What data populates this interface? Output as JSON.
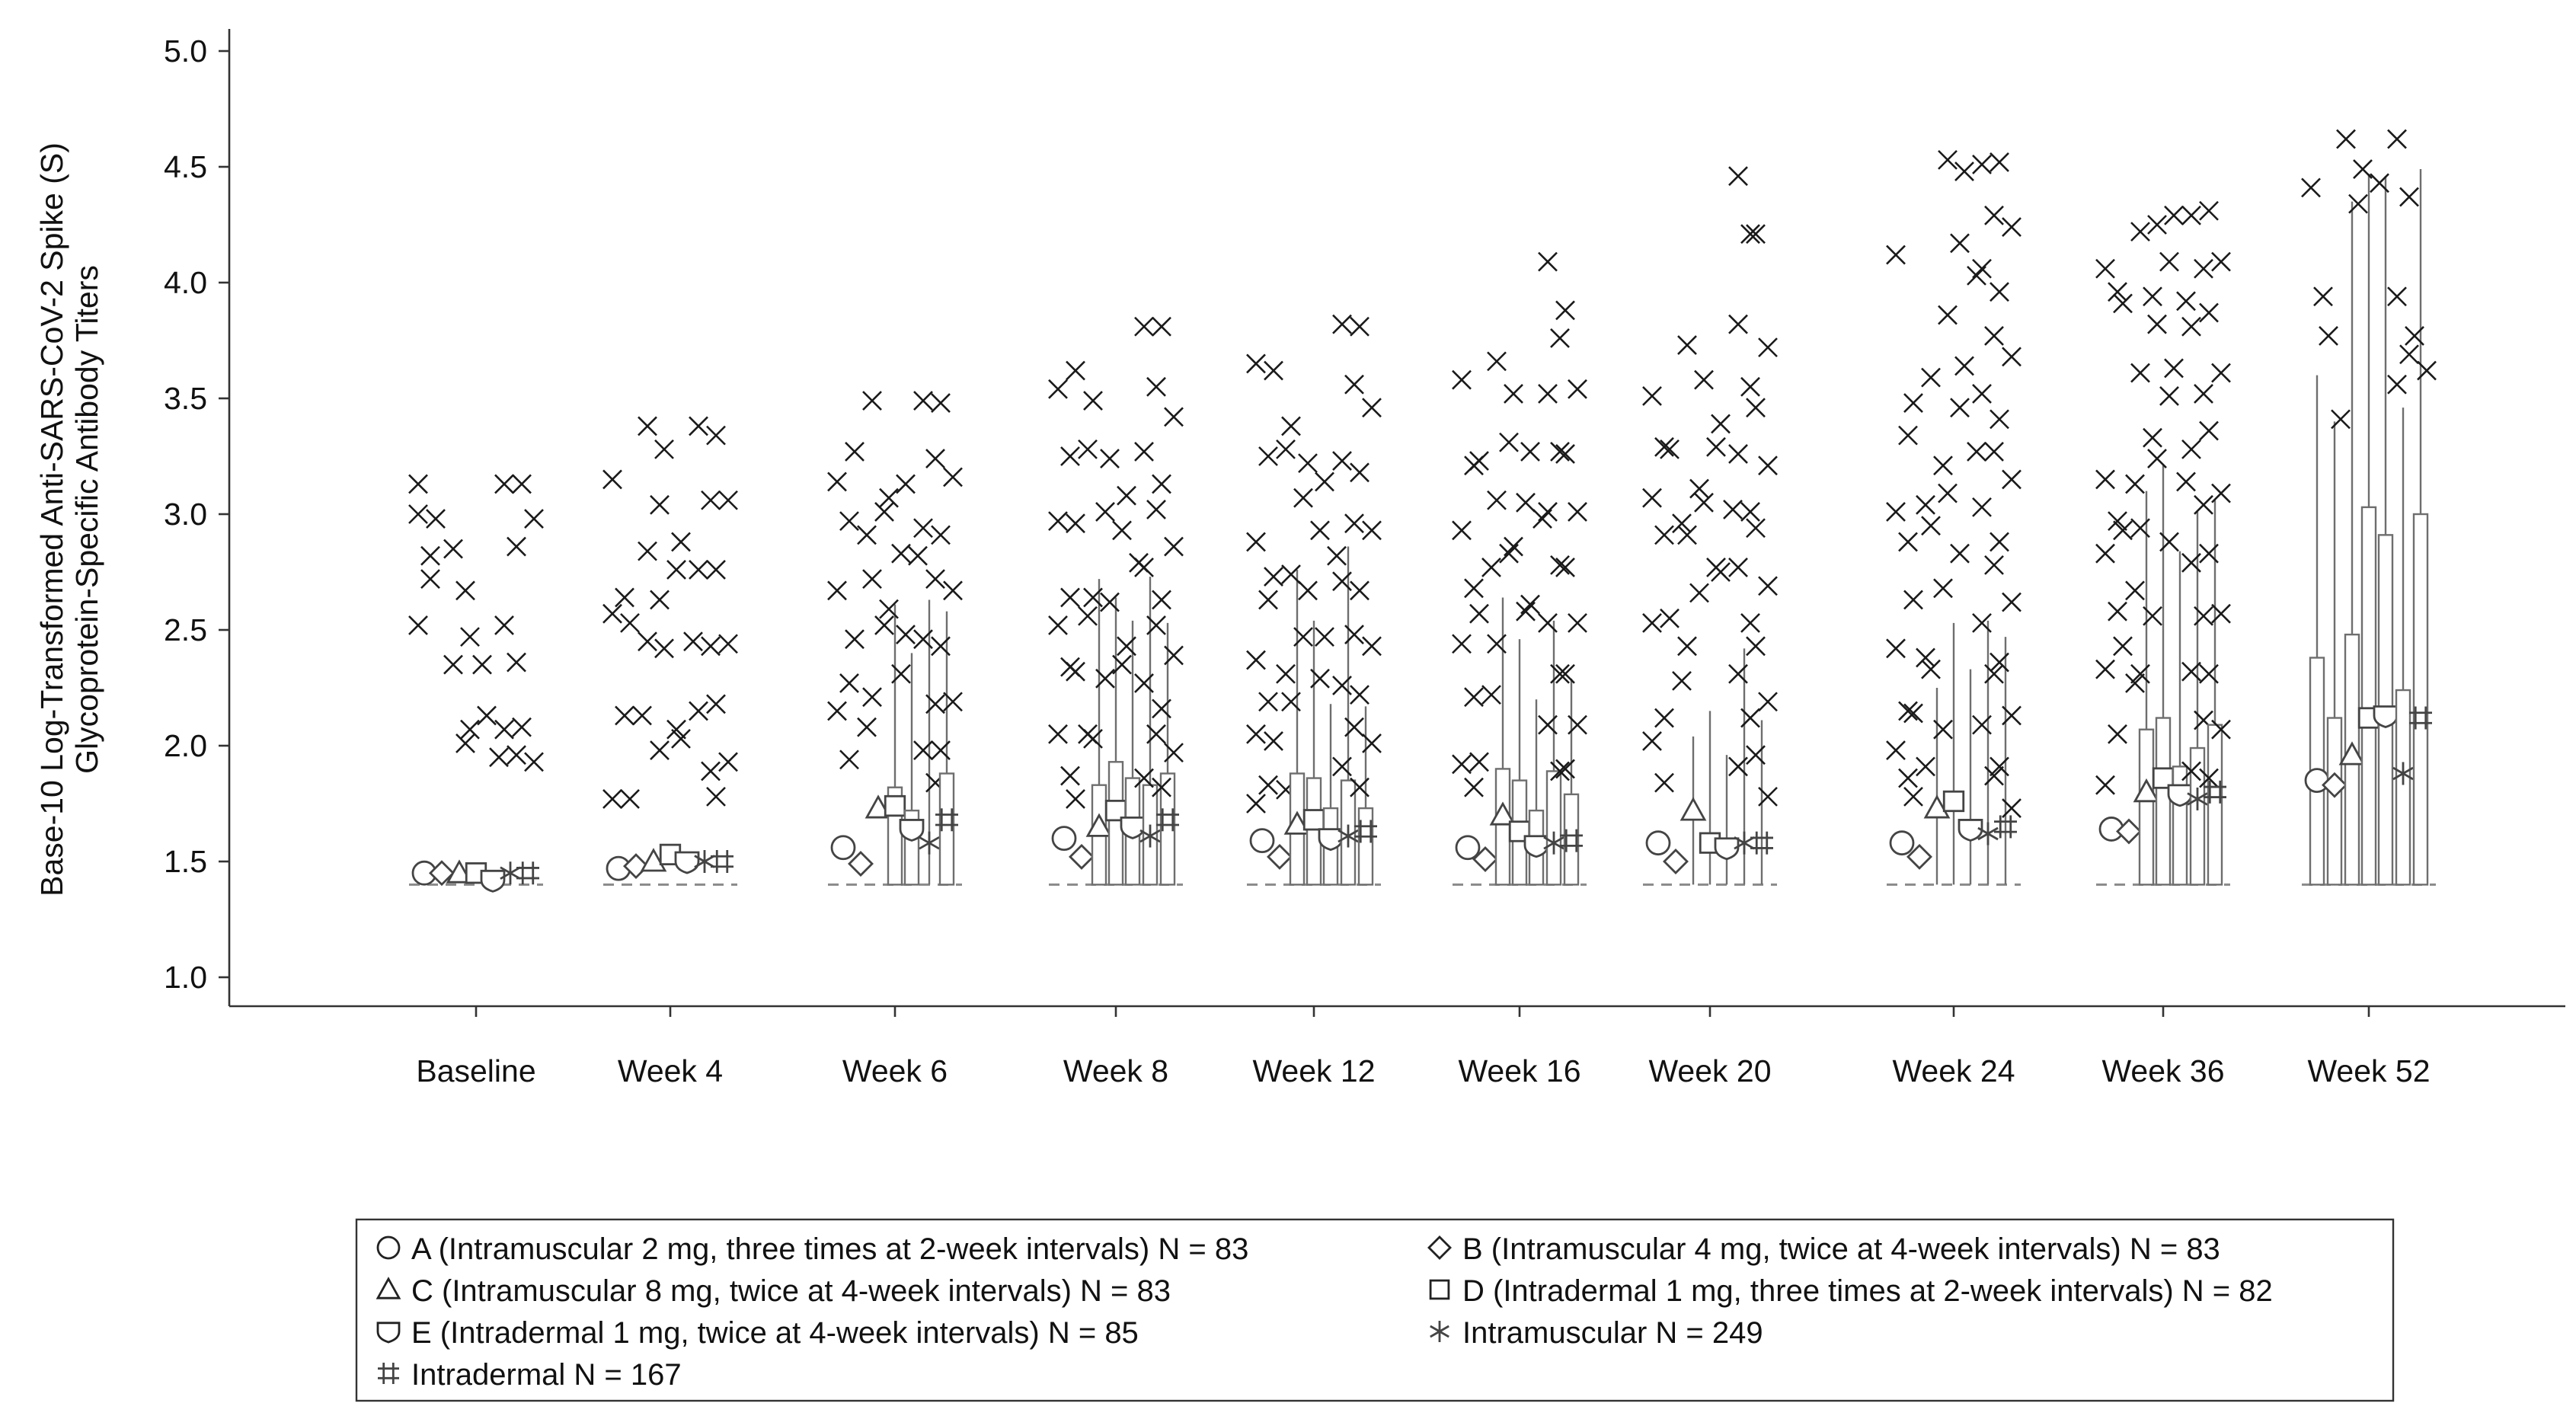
{
  "chart_data": {
    "type": "box",
    "title": "",
    "xlabel": "",
    "ylabel_lines": [
      "Base-10 Log-Transformed Anti-SARS-CoV-2 Spike (S)",
      "Glycoprotein-Specific Antibody Titers"
    ],
    "ylim": [
      0.9,
      5.1
    ],
    "yticks": [
      1.0,
      1.5,
      2.0,
      2.5,
      3.0,
      3.5,
      4.0,
      4.5,
      5.0
    ],
    "ytick_labels": [
      "1.0",
      "1.5",
      "2.0",
      "2.5",
      "3.0",
      "3.5",
      "4.0",
      "4.5",
      "5.0"
    ],
    "lloq": 1.4,
    "categories": [
      "Baseline",
      "Week 4",
      "Week 6",
      "Week 8",
      "Week 12",
      "Week 16",
      "Week 20",
      "Week 24",
      "Week 36",
      "Week 52"
    ],
    "series": [
      {
        "name": "A (Intramuscular 2 mg, three times at 2-week intervals) N = 83",
        "symbol": "circle",
        "means": [
          1.45,
          1.47,
          1.56,
          1.6,
          1.59,
          1.56,
          1.58,
          1.58,
          1.64,
          1.85
        ],
        "q3": [
          null,
          null,
          null,
          null,
          null,
          null,
          null,
          null,
          null,
          2.38
        ],
        "upper": [
          null,
          null,
          null,
          null,
          null,
          null,
          null,
          null,
          null,
          3.6
        ],
        "outliers": [
          [
            3.13,
            2.72,
            2.52,
            2.82,
            3.0
          ],
          [
            3.15,
            2.64,
            2.57,
            2.13,
            1.77
          ],
          [
            3.14,
            2.97,
            2.67,
            2.27,
            2.15,
            1.94
          ],
          [
            3.54,
            3.25,
            2.97,
            2.64,
            2.52,
            2.34,
            2.05,
            1.87
          ],
          [
            3.65,
            3.25,
            2.88,
            2.63,
            2.37,
            2.19,
            2.05,
            1.83,
            1.75
          ],
          [
            3.58,
            3.21,
            2.93,
            2.68,
            2.44,
            2.21,
            1.92,
            1.82
          ],
          [
            3.51,
            3.29,
            3.07,
            2.91,
            2.53,
            2.12,
            2.02,
            1.84
          ],
          [
            4.12,
            3.34,
            3.01,
            2.88,
            2.42,
            2.15,
            1.98,
            1.86
          ],
          [
            4.06,
            3.96,
            3.15,
            2.97,
            2.83,
            2.58,
            2.33,
            2.05,
            1.83
          ],
          [
            4.41,
            3.94
          ]
        ]
      },
      {
        "name": "B (Intramuscular 4 mg, twice at 4-week intervals) N = 83",
        "symbol": "diamond",
        "means": [
          1.45,
          1.48,
          1.49,
          1.52,
          1.52,
          1.51,
          1.5,
          1.52,
          1.63,
          1.83
        ],
        "q3": [
          null,
          null,
          null,
          null,
          null,
          null,
          null,
          null,
          null,
          2.12
        ],
        "upper": [
          null,
          null,
          null,
          null,
          null,
          null,
          null,
          null,
          null,
          3.4
        ],
        "outliers": [
          [
            2.98
          ],
          [
            2.53,
            2.13,
            1.77
          ],
          [
            3.27,
            2.91,
            2.46,
            2.08
          ],
          [
            3.62,
            3.28,
            2.96,
            2.56,
            2.32,
            2.05,
            1.77
          ],
          [
            3.62,
            3.28,
            2.73,
            2.31,
            2.02,
            1.81
          ],
          [
            3.23,
            2.77,
            2.57,
            2.22,
            1.93
          ],
          [
            3.28,
            2.96,
            2.55,
            2.28
          ],
          [
            3.48,
            3.04,
            2.63,
            2.38,
            2.14,
            1.91,
            1.78
          ],
          [
            3.91,
            3.13,
            2.93,
            2.67,
            2.43,
            2.27
          ],
          [
            3.77,
            3.41
          ]
        ]
      },
      {
        "name": "C (Intramuscular 8 mg, twice at 4-week intervals) N = 83",
        "symbol": "triangle",
        "means": [
          1.45,
          1.5,
          1.73,
          1.65,
          1.66,
          1.7,
          1.72,
          1.73,
          1.8,
          1.96
        ],
        "q3": [
          null,
          null,
          null,
          1.83,
          1.88,
          1.9,
          null,
          null,
          2.07,
          2.48
        ],
        "upper": [
          null,
          null,
          null,
          2.72,
          2.76,
          2.64,
          2.04,
          2.25,
          3.1,
          4.35
        ],
        "outliers": [
          [
            2.85,
            2.67,
            2.35,
            2.01
          ],
          [
            3.38,
            3.04,
            2.84,
            2.63,
            2.45,
            1.98
          ],
          [
            3.49,
            3.01,
            2.72,
            2.52,
            2.21
          ],
          [
            3.49,
            3.01,
            2.64,
            2.29,
            2.03
          ],
          [
            3.38,
            3.07,
            2.74,
            2.47,
            2.19
          ],
          [
            3.66,
            3.31,
            3.06,
            2.83,
            2.44
          ],
          [
            3.73,
            3.11,
            2.91,
            2.66,
            2.43
          ],
          [
            3.59,
            3.21,
            2.95,
            2.68,
            2.33,
            2.07
          ],
          [
            4.22,
            3.94,
            3.61,
            3.33,
            2.94,
            2.56,
            2.31
          ],
          [
            4.62,
            4.34
          ]
        ]
      },
      {
        "name": "D (Intradermal 1 mg, three times at 2-week intervals) N = 82",
        "symbol": "square",
        "means": [
          1.45,
          1.53,
          1.74,
          1.72,
          1.68,
          1.63,
          1.58,
          1.76,
          1.86,
          2.12
        ],
        "q3": [
          null,
          null,
          1.82,
          1.93,
          1.86,
          1.85,
          null,
          null,
          2.12,
          3.03
        ],
        "upper": [
          null,
          null,
          2.61,
          2.64,
          2.54,
          2.46,
          2.15,
          2.53,
          3.21,
          4.47
        ],
        "outliers": [
          [
            2.47,
            2.35,
            2.07
          ],
          [
            3.28,
            2.76,
            2.42,
            2.07
          ],
          [
            3.07,
            2.83,
            2.59,
            2.31
          ],
          [
            3.24,
            2.93,
            2.62,
            2.35
          ],
          [
            3.22,
            2.93,
            2.67,
            2.29
          ],
          [
            3.52,
            3.05,
            2.86,
            2.58
          ],
          [
            3.58,
            3.29,
            3.05,
            2.77
          ],
          [
            4.53,
            4.17,
            3.86,
            3.46,
            3.09,
            2.83
          ],
          [
            4.25,
            4.09,
            3.82,
            3.51,
            3.24,
            2.88
          ],
          [
            4.49
          ]
        ]
      },
      {
        "name": "E (Intradermal 1 mg, twice at 4-week intervals) N = 85",
        "symbol": "shield",
        "means": [
          1.42,
          1.5,
          1.64,
          1.65,
          1.6,
          1.57,
          1.56,
          1.64,
          1.79,
          2.13
        ],
        "q3": [
          null,
          null,
          1.72,
          1.86,
          1.73,
          1.72,
          null,
          null,
          1.91,
          2.91
        ],
        "upper": [
          null,
          null,
          2.4,
          2.54,
          2.18,
          2.2,
          1.96,
          2.33,
          2.84,
          4.46
        ],
        "outliers": [
          [
            2.13,
            1.95
          ],
          [
            2.88,
            2.45,
            2.03
          ],
          [
            3.13,
            2.82,
            2.48
          ],
          [
            3.08,
            2.79,
            2.43
          ],
          [
            3.14,
            2.82,
            2.47
          ],
          [
            3.27,
            2.98,
            2.61
          ],
          [
            3.39,
            3.02,
            2.75
          ],
          [
            4.48,
            4.03,
            3.64,
            3.27
          ],
          [
            4.29,
            3.92,
            3.63,
            3.14
          ],
          [
            4.43
          ]
        ]
      },
      {
        "name": "Intramuscular N = 249",
        "symbol": "asterisk",
        "means": [
          1.45,
          1.5,
          1.58,
          1.61,
          1.61,
          1.58,
          1.58,
          1.62,
          1.77,
          1.88
        ],
        "q3": [
          null,
          null,
          null,
          1.83,
          1.85,
          1.89,
          null,
          null,
          1.99,
          2.24
        ],
        "upper": [
          null,
          null,
          2.63,
          2.73,
          2.86,
          2.54,
          2.42,
          2.54,
          3.01,
          3.46
        ],
        "outliers": [
          [
            3.13,
            2.86,
            2.52,
            2.36,
            2.07,
            1.96
          ],
          [
            3.38,
            3.06,
            2.76,
            2.43,
            2.15,
            1.89
          ],
          [
            3.49,
            3.24,
            2.94,
            2.72,
            2.46,
            2.18,
            1.98,
            1.84
          ],
          [
            3.81,
            3.55,
            3.27,
            3.02,
            2.77,
            2.52,
            2.27,
            2.05,
            1.86
          ],
          [
            3.82,
            3.56,
            3.23,
            2.96,
            2.71,
            2.48,
            2.26,
            2.08,
            1.91
          ],
          [
            4.09,
            3.76,
            3.52,
            3.27,
            3.01,
            2.78,
            2.53,
            2.31,
            2.09,
            1.89
          ],
          [
            4.46,
            4.21,
            3.82,
            3.55,
            3.26,
            3.01,
            2.77,
            2.53,
            2.31,
            2.12,
            1.91
          ],
          [
            4.51,
            4.29,
            4.06,
            3.77,
            3.52,
            3.27,
            3.03,
            2.78,
            2.53,
            2.31,
            2.09,
            1.87
          ],
          [
            4.29,
            4.06,
            3.81,
            3.52,
            3.28,
            3.04,
            2.79,
            2.56,
            2.32,
            2.11,
            1.89
          ],
          [
            4.62,
            4.37,
            3.94,
            3.69,
            3.56
          ]
        ]
      },
      {
        "name": "Intradermal N = 167",
        "symbol": "hash",
        "means": [
          1.45,
          1.5,
          1.68,
          1.68,
          1.63,
          1.59,
          1.58,
          1.65,
          1.8,
          2.12
        ],
        "q3": [
          null,
          null,
          1.88,
          1.88,
          1.73,
          1.79,
          null,
          null,
          2.09,
          3.0
        ],
        "upper": [
          null,
          null,
          2.58,
          2.53,
          2.17,
          2.29,
          2.11,
          2.47,
          3.06,
          4.49
        ],
        "outliers": [
          [
            3.13,
            2.98,
            2.08,
            1.93
          ],
          [
            3.34,
            3.06,
            2.76,
            2.44,
            2.18,
            1.93,
            1.78
          ],
          [
            3.48,
            3.16,
            2.91,
            2.67,
            2.43,
            2.19,
            1.98
          ],
          [
            3.81,
            3.42,
            3.13,
            2.86,
            2.63,
            2.39,
            2.16,
            1.97,
            1.82
          ],
          [
            3.81,
            3.46,
            3.18,
            2.93,
            2.67,
            2.43,
            2.22,
            2.01,
            1.82
          ],
          [
            3.88,
            3.54,
            3.26,
            3.01,
            2.77,
            2.53,
            2.31,
            2.09,
            1.9
          ],
          [
            4.21,
            3.72,
            3.46,
            3.21,
            2.94,
            2.69,
            2.43,
            2.19,
            1.96,
            1.78
          ],
          [
            4.52,
            4.24,
            3.96,
            3.68,
            3.41,
            3.15,
            2.88,
            2.62,
            2.36,
            2.13,
            1.91,
            1.73
          ],
          [
            4.31,
            4.09,
            3.87,
            3.61,
            3.36,
            3.09,
            2.83,
            2.57,
            2.31,
            2.07,
            1.86
          ],
          [
            3.77,
            3.62
          ]
        ]
      }
    ],
    "legend": [
      {
        "symbol": "circle",
        "label": "A (Intramuscular 2 mg, three times at 2-week intervals) N = 83"
      },
      {
        "symbol": "diamond",
        "label": "B (Intramuscular 4 mg, twice at 4-week intervals) N = 83"
      },
      {
        "symbol": "triangle",
        "label": "C (Intramuscular 8 mg, twice at 4-week intervals) N = 83"
      },
      {
        "symbol": "square",
        "label": "D (Intradermal 1 mg, three times at 2-week intervals) N = 82"
      },
      {
        "symbol": "shield",
        "label": "E (Intradermal 1 mg, twice at 4-week intervals) N = 85"
      },
      {
        "symbol": "asterisk",
        "label": "Intramuscular N = 249"
      },
      {
        "symbol": "hash",
        "label": "Intradermal N = 167"
      }
    ]
  }
}
